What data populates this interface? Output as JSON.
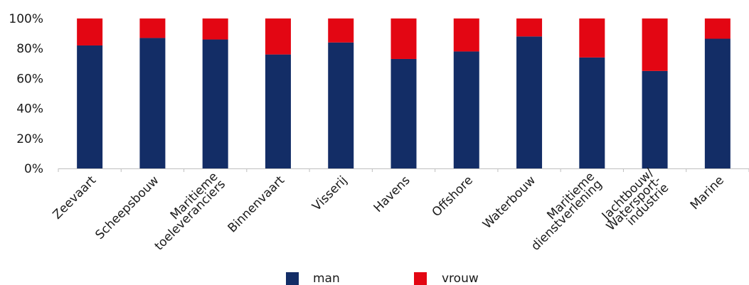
{
  "chart_data": {
    "type": "bar",
    "stacked": true,
    "categories": [
      [
        "Zeevaart"
      ],
      [
        "Scheepsbouw"
      ],
      [
        "Maritieme",
        "toeleveranciers"
      ],
      [
        "Binnenvaart"
      ],
      [
        "Visserij"
      ],
      [
        "Havens"
      ],
      [
        "Offshore"
      ],
      [
        "Waterbouw"
      ],
      [
        "Maritieme",
        "dienstverlening"
      ],
      [
        "Jachtbouw/",
        "Watersport-",
        "industrie"
      ],
      [
        "Marine"
      ]
    ],
    "series": [
      {
        "name": "man",
        "color": "#132d66",
        "values": [
          82,
          87,
          86,
          76,
          84,
          73,
          78,
          88,
          74,
          65,
          86.5
        ]
      },
      {
        "name": "vrouw",
        "color": "#e30613",
        "values": [
          18,
          13,
          14,
          24,
          16,
          27,
          22,
          12,
          26,
          35,
          13.5
        ]
      }
    ],
    "yticks": [
      "0%",
      "20%",
      "40%",
      "60%",
      "80%",
      "100%"
    ],
    "ylim": [
      0,
      100
    ],
    "grid": false,
    "legend": "bottom-center"
  }
}
